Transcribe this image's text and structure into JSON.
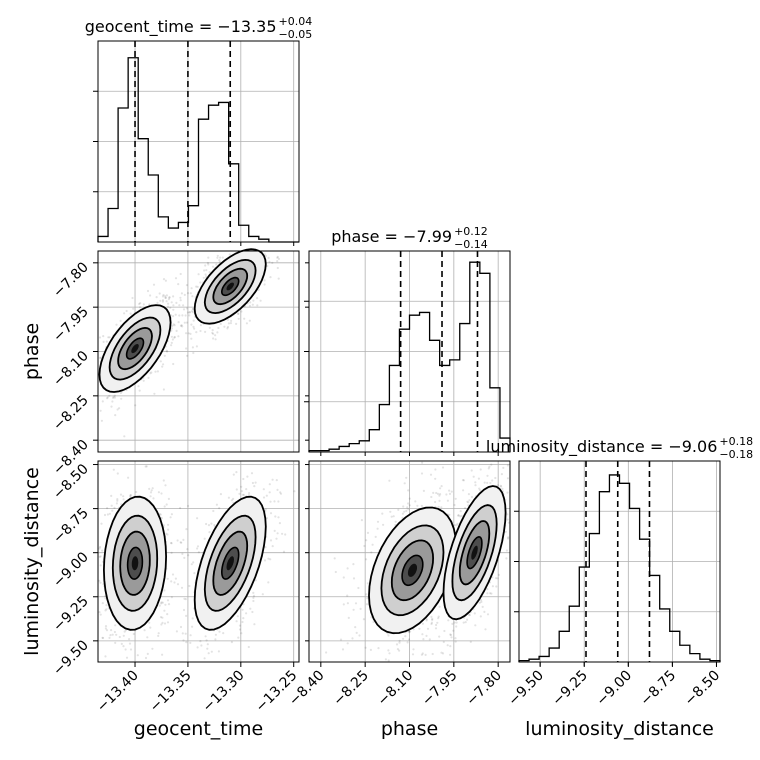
{
  "chart_data": {
    "type": "corner",
    "parameters": [
      {
        "name": "geocent_time",
        "axis_label": "geocent_time",
        "title_prefix": "geocent_time = ",
        "median": "−13.35",
        "err_plus": "+0.04",
        "err_minus": "−0.05",
        "range": [
          -13.435,
          -13.245
        ],
        "ticks": [
          -13.4,
          -13.35,
          -13.3,
          -13.25
        ],
        "tick_labels": [
          "−13.40",
          "−13.35",
          "−13.30",
          "−13.25"
        ],
        "quantiles": [
          -13.4,
          -13.35,
          -13.31
        ],
        "histogram": [
          0.02,
          0.12,
          0.48,
          0.66,
          0.37,
          0.24,
          0.09,
          0.05,
          0.07,
          0.13,
          0.44,
          0.49,
          0.5,
          0.28,
          0.06,
          0.02,
          0.01,
          0.0,
          0.0,
          0.0
        ]
      },
      {
        "name": "phase",
        "axis_label": "phase",
        "title_prefix": "phase = ",
        "median": "−7.99",
        "err_plus": "+0.12",
        "err_minus": "−0.14",
        "range": [
          -8.44,
          -7.76
        ],
        "ticks": [
          -8.4,
          -8.25,
          -8.1,
          -7.95,
          -7.8
        ],
        "tick_labels": [
          "−8.40",
          "−8.25",
          "−8.10",
          "−7.95",
          "−7.80"
        ],
        "quantiles": [
          -8.13,
          -7.99,
          -7.87
        ],
        "histogram": [
          0.005,
          0.005,
          0.01,
          0.02,
          0.03,
          0.04,
          0.08,
          0.17,
          0.31,
          0.44,
          0.49,
          0.5,
          0.4,
          0.31,
          0.33,
          0.46,
          0.68,
          0.64,
          0.23,
          0.05
        ]
      },
      {
        "name": "luminosity_distance",
        "axis_label": "luminosity_distance",
        "title_prefix": "luminosity_distance = ",
        "median": "−9.06",
        "err_plus": "+0.18",
        "err_minus": "−0.18",
        "range": [
          -9.62,
          -8.48
        ],
        "ticks": [
          -9.5,
          -9.25,
          -9.0,
          -8.75,
          -8.5
        ],
        "tick_labels": [
          "−9.50",
          "−9.25",
          "−9.00",
          "−8.75",
          "−8.50"
        ],
        "quantiles": [
          -9.24,
          -9.06,
          -8.88
        ],
        "histogram": [
          0.005,
          0.01,
          0.02,
          0.05,
          0.11,
          0.2,
          0.34,
          0.46,
          0.61,
          0.67,
          0.64,
          0.55,
          0.44,
          0.31,
          0.19,
          0.11,
          0.06,
          0.03,
          0.01,
          0.005
        ]
      }
    ],
    "density_modes": {
      "geocent_time_vs_phase": [
        {
          "x": -13.4,
          "y": -8.09,
          "sx": 0.016,
          "sy": 0.07,
          "rho": 0.6,
          "w": 0.5
        },
        {
          "x": -13.31,
          "y": -7.88,
          "sx": 0.016,
          "sy": 0.06,
          "rho": 0.6,
          "w": 0.5
        }
      ],
      "geocent_time_vs_luminosity_distance": [
        {
          "x": -13.4,
          "y": -9.06,
          "sx": 0.014,
          "sy": 0.18,
          "rho": 0.1,
          "w": 0.5
        },
        {
          "x": -13.31,
          "y": -9.06,
          "sx": 0.016,
          "sy": 0.18,
          "rho": 0.55,
          "w": 0.5
        }
      ],
      "phase_vs_luminosity_distance": [
        {
          "x": -8.09,
          "y": -9.1,
          "sx": 0.07,
          "sy": 0.17,
          "rho": 0.4,
          "w": 0.5
        },
        {
          "x": -7.88,
          "y": -9.0,
          "sx": 0.05,
          "sy": 0.18,
          "rho": 0.6,
          "w": 0.5
        }
      ]
    },
    "grid": true,
    "contour_color": "#000000",
    "quantile_line_style": "dashed"
  }
}
